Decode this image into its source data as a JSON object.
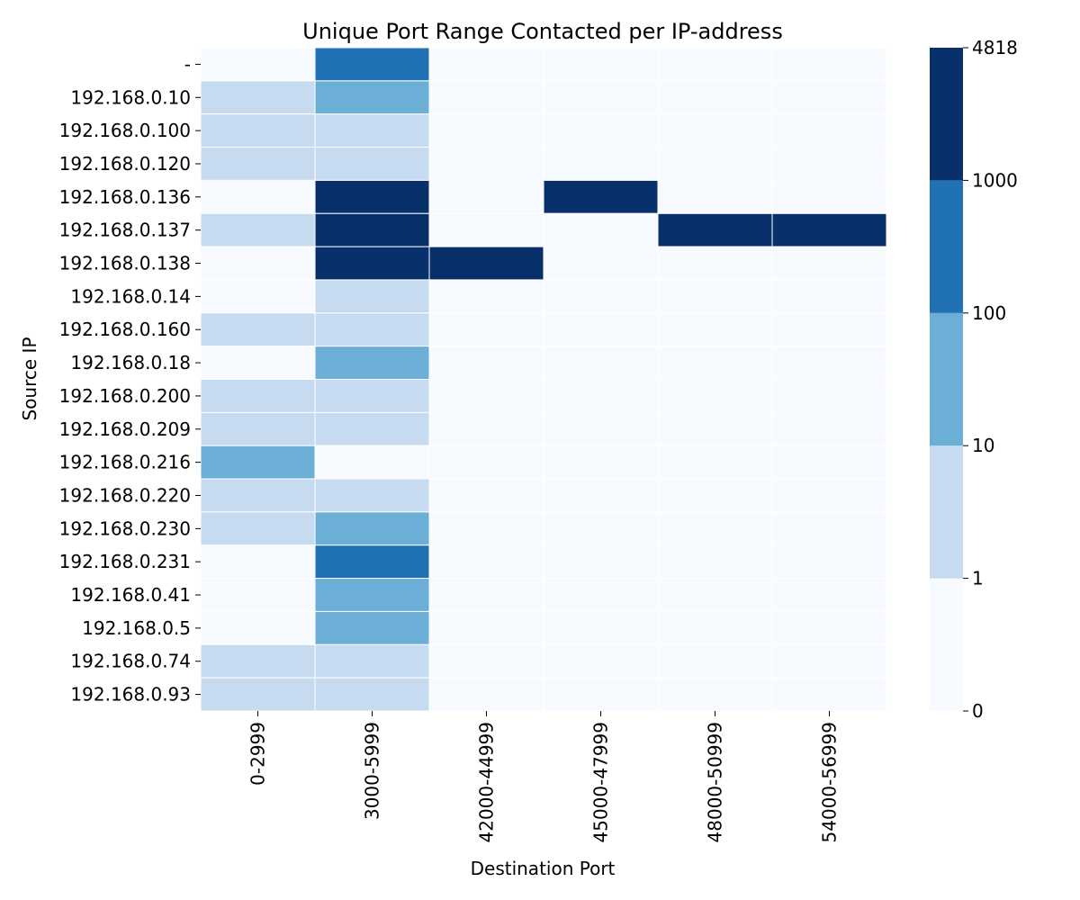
{
  "chart_data": {
    "type": "heatmap",
    "title": "Unique Port Range Contacted per IP-address",
    "xlabel": "Destination Port",
    "ylabel": "Source IP",
    "x_categories": [
      "0-2999",
      "3000-5999",
      "42000-44999",
      "45000-47999",
      "48000-50999",
      "54000-56999"
    ],
    "y_categories": [
      "-",
      "192.168.0.10",
      "192.168.0.100",
      "192.168.0.120",
      "192.168.0.136",
      "192.168.0.137",
      "192.168.0.138",
      "192.168.0.14",
      "192.168.0.160",
      "192.168.0.18",
      "192.168.0.200",
      "192.168.0.209",
      "192.168.0.216",
      "192.168.0.220",
      "192.168.0.230",
      "192.168.0.231",
      "192.168.0.41",
      "192.168.0.5",
      "192.168.0.74",
      "192.168.0.93"
    ],
    "value_bins": [
      [
        0,
        3,
        0,
        0,
        0,
        0
      ],
      [
        1,
        2,
        0,
        0,
        0,
        0
      ],
      [
        1,
        1,
        0,
        0,
        0,
        0
      ],
      [
        1,
        1,
        0,
        0,
        0,
        0
      ],
      [
        0,
        4,
        0,
        4,
        0,
        0
      ],
      [
        1,
        4,
        0,
        0,
        4,
        4
      ],
      [
        0,
        4,
        4,
        0,
        0,
        0
      ],
      [
        0,
        1,
        0,
        0,
        0,
        0
      ],
      [
        1,
        1,
        0,
        0,
        0,
        0
      ],
      [
        0,
        2,
        0,
        0,
        0,
        0
      ],
      [
        1,
        1,
        0,
        0,
        0,
        0
      ],
      [
        1,
        1,
        0,
        0,
        0,
        0
      ],
      [
        2,
        0,
        0,
        0,
        0,
        0
      ],
      [
        1,
        1,
        0,
        0,
        0,
        0
      ],
      [
        1,
        2,
        0,
        0,
        0,
        0
      ],
      [
        0,
        3,
        0,
        0,
        0,
        0
      ],
      [
        0,
        2,
        0,
        0,
        0,
        0
      ],
      [
        0,
        2,
        0,
        0,
        0,
        0
      ],
      [
        1,
        1,
        0,
        0,
        0,
        0
      ],
      [
        1,
        1,
        0,
        0,
        0,
        0
      ]
    ],
    "colorbar": {
      "boundaries": [
        0,
        1,
        10,
        100,
        1000,
        4818
      ],
      "tick_labels": [
        "0",
        "1",
        "10",
        "100",
        "1000",
        "4818"
      ],
      "colors": [
        "#f7fbff",
        "#c6dbef",
        "#6baed6",
        "#2171b5",
        "#08306b"
      ]
    }
  }
}
